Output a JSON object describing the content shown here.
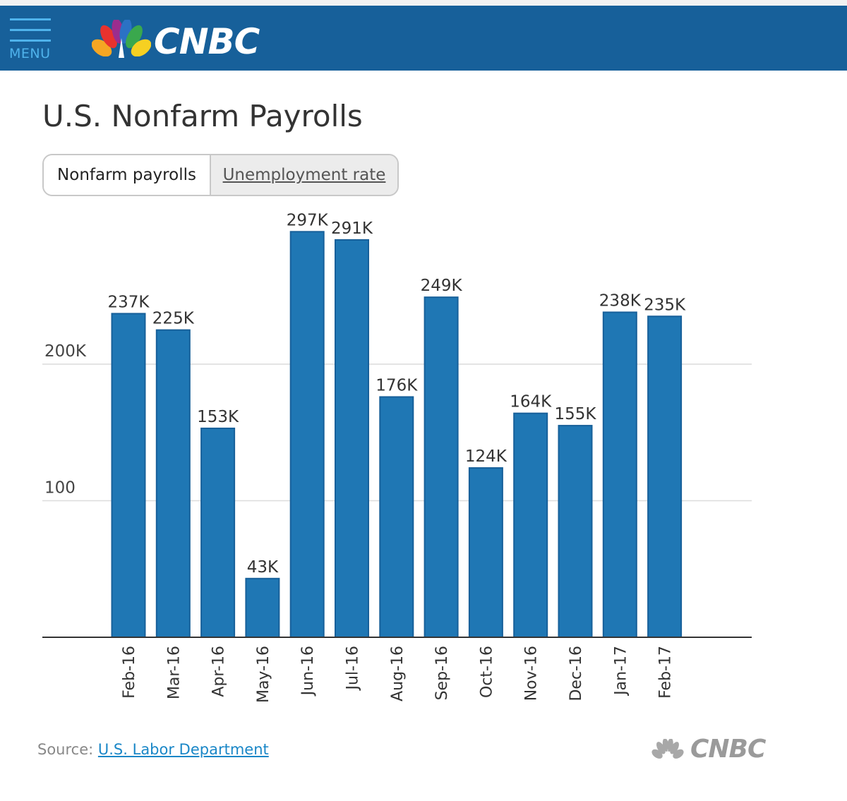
{
  "header": {
    "menu_label": "MENU",
    "brand": "CNBC",
    "background_color": "#17609a",
    "accent_color": "#4fb3ec",
    "menu_icon": "hamburger-icon",
    "logo_icon": "peacock-icon"
  },
  "page": {
    "title": "U.S. Nonfarm Payrolls"
  },
  "toggle": {
    "active_label": "Nonfarm payrolls",
    "inactive_label": "Unemployment rate"
  },
  "footer": {
    "source_prefix": "Source:",
    "source_link": "U.S. Labor Department",
    "brand": "CNBC"
  },
  "chart_data": {
    "type": "bar",
    "title": "U.S. Nonfarm Payrolls",
    "xlabel": "",
    "ylabel": "",
    "categories": [
      "Feb-16",
      "Mar-16",
      "Apr-16",
      "May-16",
      "Jun-16",
      "Jul-16",
      "Aug-16",
      "Sep-16",
      "Oct-16",
      "Nov-16",
      "Dec-16",
      "Jan-17",
      "Feb-17"
    ],
    "values": [
      237,
      225,
      153,
      43,
      297,
      291,
      176,
      249,
      124,
      164,
      155,
      238,
      235
    ],
    "data_labels": [
      "237K",
      "225K",
      "153K",
      "43K",
      "297K",
      "291K",
      "176K",
      "249K",
      "124K",
      "164K",
      "155K",
      "238K",
      "235K"
    ],
    "y_ticks": [
      {
        "value": 100,
        "label": "100"
      },
      {
        "value": 200,
        "label": "200K"
      }
    ],
    "ylim": [
      0,
      300
    ],
    "grid": true,
    "bar_color": "#1f77b4",
    "bar_edge_color": "#17609a"
  }
}
